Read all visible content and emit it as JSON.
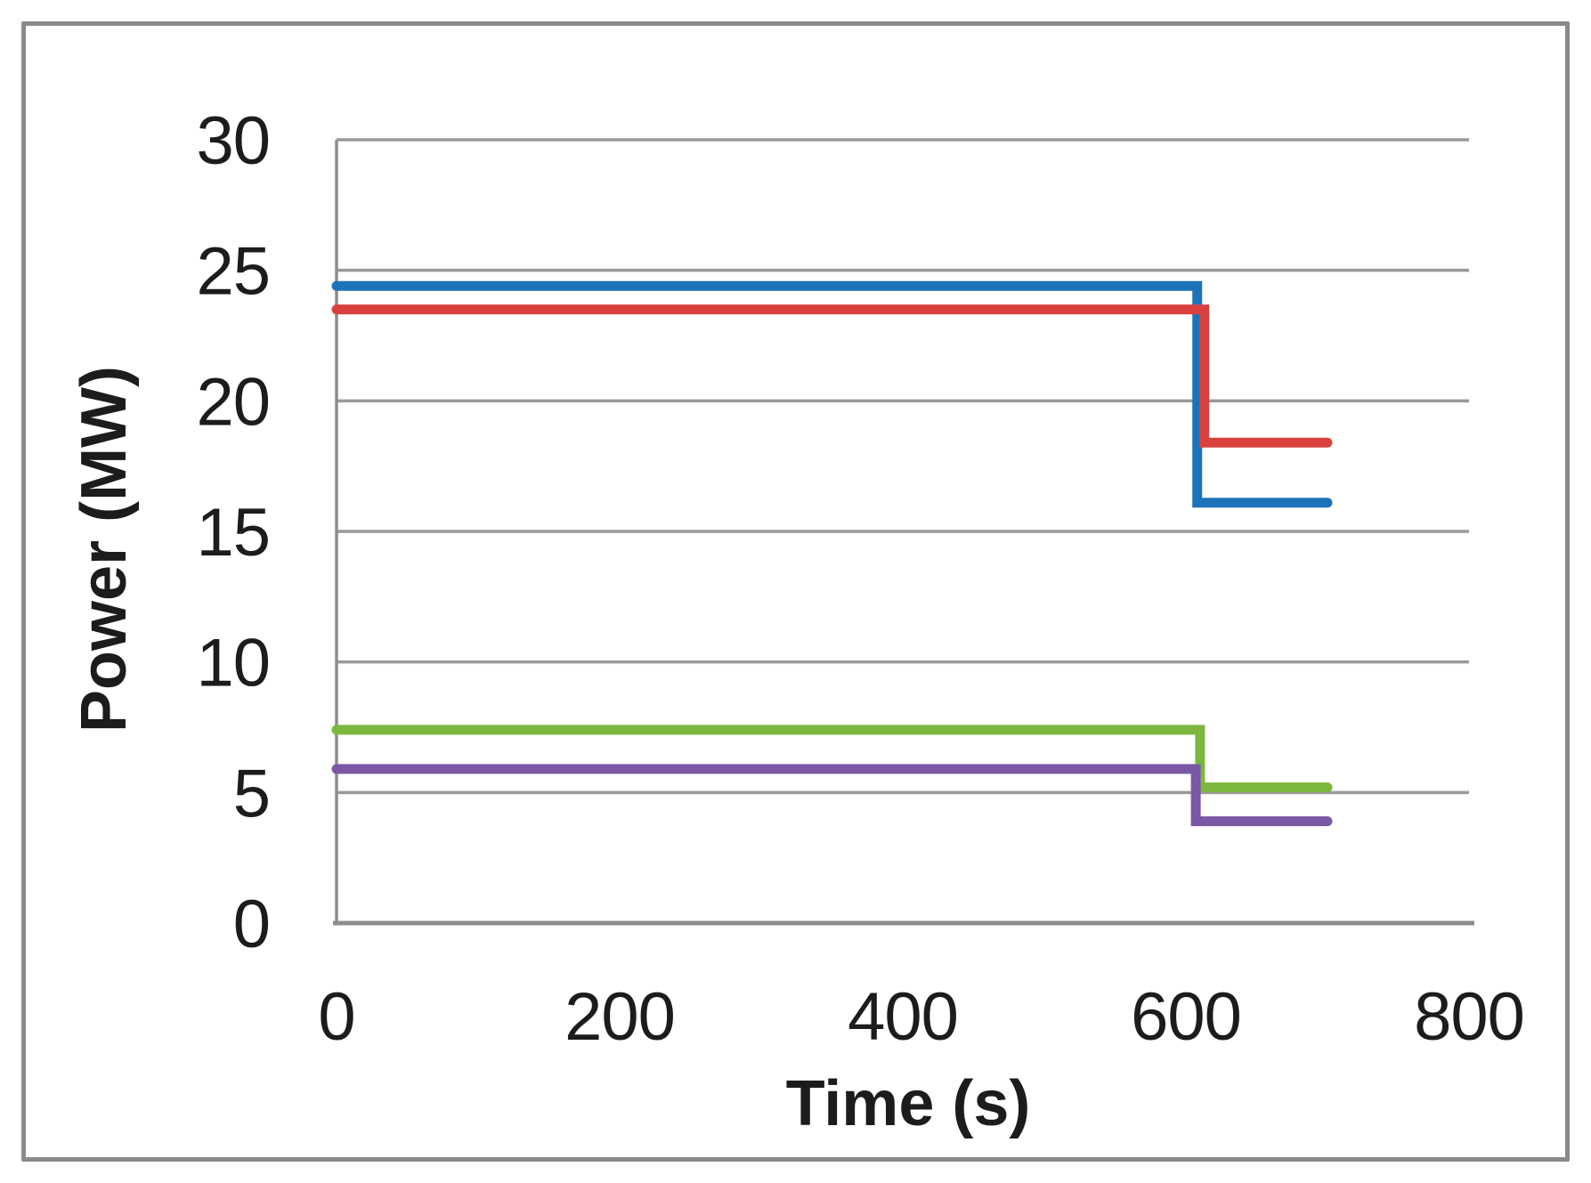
{
  "figure": {
    "background": "#ffffff",
    "border_color": "#8a8a8a"
  },
  "chart_data": {
    "type": "line",
    "subtype": "step",
    "title": "",
    "xlabel": "Time (s)",
    "ylabel": "Power (MW)",
    "xlim": [
      0,
      800
    ],
    "ylim": [
      0,
      30
    ],
    "x_ticks": [
      "0",
      "200",
      "400",
      "600",
      "800"
    ],
    "x_tick_values": [
      0,
      200,
      400,
      600,
      800
    ],
    "y_ticks": [
      "0",
      "5",
      "10",
      "15",
      "20",
      "25",
      "30"
    ],
    "y_tick_values": [
      0,
      5,
      10,
      15,
      20,
      25,
      30
    ],
    "grid": "horizontal",
    "legend": "none",
    "series": [
      {
        "name": "blue-series",
        "color": "#1d73b9",
        "points": [
          [
            0,
            24.4
          ],
          [
            608,
            24.4
          ],
          [
            608,
            16.1
          ],
          [
            700,
            16.1
          ]
        ]
      },
      {
        "name": "red-series",
        "color": "#d8413d",
        "points": [
          [
            0,
            23.5
          ],
          [
            613,
            23.5
          ],
          [
            613,
            18.4
          ],
          [
            700,
            18.4
          ]
        ]
      },
      {
        "name": "green-series",
        "color": "#7cb83f",
        "points": [
          [
            0,
            7.4
          ],
          [
            610,
            7.4
          ],
          [
            610,
            5.2
          ],
          [
            700,
            5.2
          ]
        ]
      },
      {
        "name": "purple-series",
        "color": "#7a58a5",
        "points": [
          [
            0,
            5.9
          ],
          [
            607,
            5.9
          ],
          [
            607,
            3.9
          ],
          [
            700,
            3.9
          ]
        ]
      }
    ],
    "style": {
      "grid_color": "#999999",
      "axis_color": "#8d8d8d",
      "text_color": "#1c1c1c",
      "line_width": 11
    }
  }
}
